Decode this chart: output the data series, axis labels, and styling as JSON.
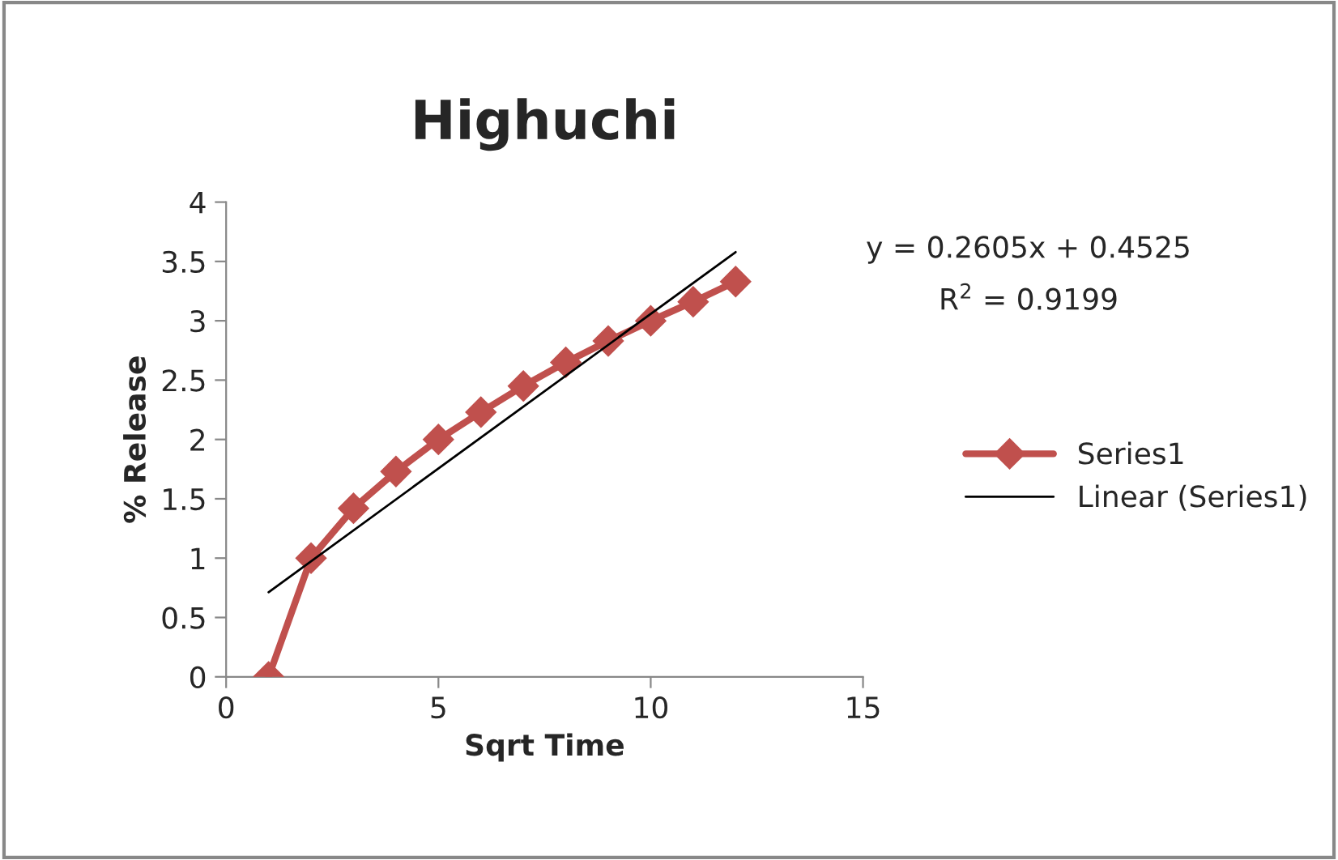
{
  "chart_data": {
    "type": "line",
    "title": "Highuchi",
    "xlabel": "Sqrt Time",
    "ylabel": "% Release",
    "x": [
      1,
      2,
      3,
      4,
      5,
      6,
      7,
      8,
      9,
      10,
      11,
      12
    ],
    "series": [
      {
        "name": "Series1",
        "color": "#c0504d",
        "marker": "diamond",
        "values": [
          0,
          1.0,
          1.42,
          1.73,
          2.0,
          2.23,
          2.45,
          2.65,
          2.83,
          3.0,
          3.16,
          3.33
        ]
      },
      {
        "name": "Linear (Series1)",
        "color": "#000000",
        "marker": "none",
        "x": [
          1,
          12
        ],
        "values": [
          0.713,
          3.579
        ]
      }
    ],
    "annotations": [
      "y = 0.2605x + 0.4525",
      "R$^{2}$ = 0.9199"
    ],
    "xlim": [
      0,
      15
    ],
    "xticks": [
      0,
      5,
      10,
      15
    ],
    "ylim": [
      0,
      4
    ],
    "yticks": [
      0,
      0.5,
      1,
      1.5,
      2,
      2.5,
      3,
      3.5,
      4
    ],
    "legend": "right",
    "grid": false
  }
}
